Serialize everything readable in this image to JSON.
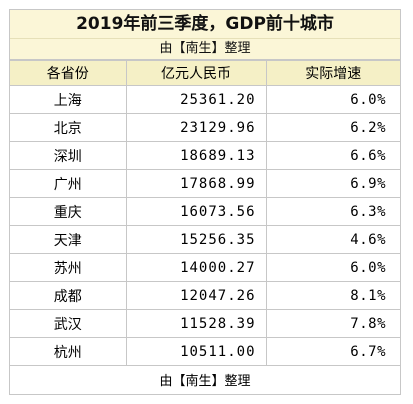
{
  "header": {
    "title": "2019年前三季度，GDP前十城市",
    "subtitle": "由【南生】整理"
  },
  "table": {
    "columns": [
      "各省份",
      "亿元人民币",
      "实际增速"
    ],
    "rows": [
      {
        "city": "上海",
        "gdp": "25361.20",
        "rate": "6.0%"
      },
      {
        "city": "北京",
        "gdp": "23129.96",
        "rate": "6.2%"
      },
      {
        "city": "深圳",
        "gdp": "18689.13",
        "rate": "6.6%"
      },
      {
        "city": "广州",
        "gdp": "17868.99",
        "rate": "6.9%"
      },
      {
        "city": "重庆",
        "gdp": "16073.56",
        "rate": "6.3%"
      },
      {
        "city": "天津",
        "gdp": "15256.35",
        "rate": "4.6%"
      },
      {
        "city": "苏州",
        "gdp": "14000.27",
        "rate": "6.0%"
      },
      {
        "city": "成都",
        "gdp": "12047.26",
        "rate": "8.1%"
      },
      {
        "city": "武汉",
        "gdp": "11528.39",
        "rate": "7.8%"
      },
      {
        "city": "杭州",
        "gdp": "10511.00",
        "rate": "6.7%"
      }
    ],
    "footer": "由【南生】整理"
  },
  "colors": {
    "header_bg": "#fbf6d7",
    "column_header_bg": "#f5f0c6",
    "grid": "#c7c7c7"
  }
}
